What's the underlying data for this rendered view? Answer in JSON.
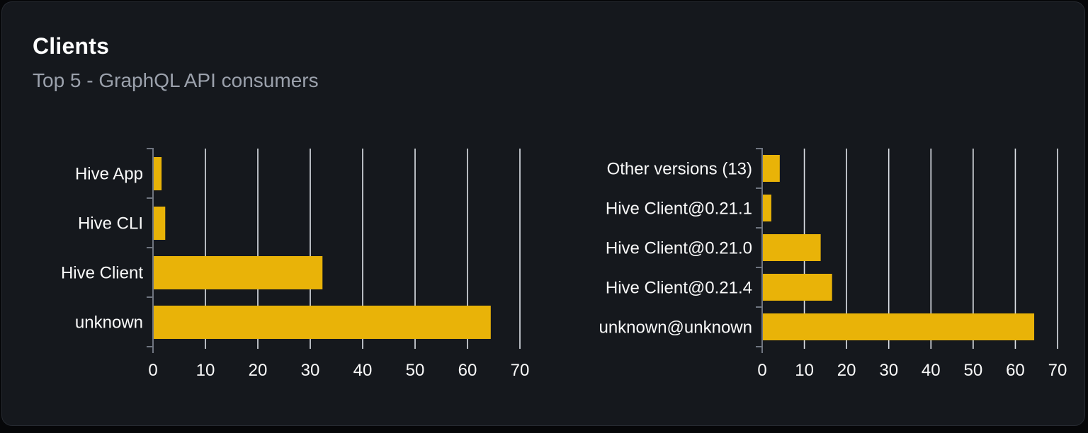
{
  "header": {
    "title": "Clients",
    "subtitle": "Top 5 - GraphQL API consumers"
  },
  "theme": {
    "page_bg": "#060709",
    "card_bg": "#15181d",
    "card_border": "#262a31",
    "bar_color": "#e9b308",
    "grid_color": "#dfe3e9",
    "axis_color": "#6f7580",
    "label_color": "#fafafa",
    "subtitle_color": "#9ba1ac"
  },
  "chart_data": [
    {
      "type": "bar",
      "orientation": "horizontal",
      "name": "clients-by-name",
      "categories": [
        "Hive App",
        "Hive CLI",
        "Hive Client",
        "unknown"
      ],
      "values": [
        1.5,
        2.2,
        32.2,
        64.3
      ],
      "xlabel": "",
      "ylabel": "",
      "xlim": [
        0,
        70
      ],
      "xticks": [
        0,
        10,
        20,
        30,
        40,
        50,
        60,
        70
      ],
      "grid": true,
      "legend": false
    },
    {
      "type": "bar",
      "orientation": "horizontal",
      "name": "clients-by-version",
      "categories": [
        "Other versions (13)",
        "Hive Client@0.21.1",
        "Hive Client@0.21.0",
        "Hive Client@0.21.4",
        "unknown@unknown"
      ],
      "values": [
        4,
        2,
        13.7,
        16.4,
        64.3
      ],
      "xlabel": "",
      "ylabel": "",
      "xlim": [
        0,
        70
      ],
      "xticks": [
        0,
        10,
        20,
        30,
        40,
        50,
        60,
        70
      ],
      "grid": true,
      "legend": false
    }
  ]
}
